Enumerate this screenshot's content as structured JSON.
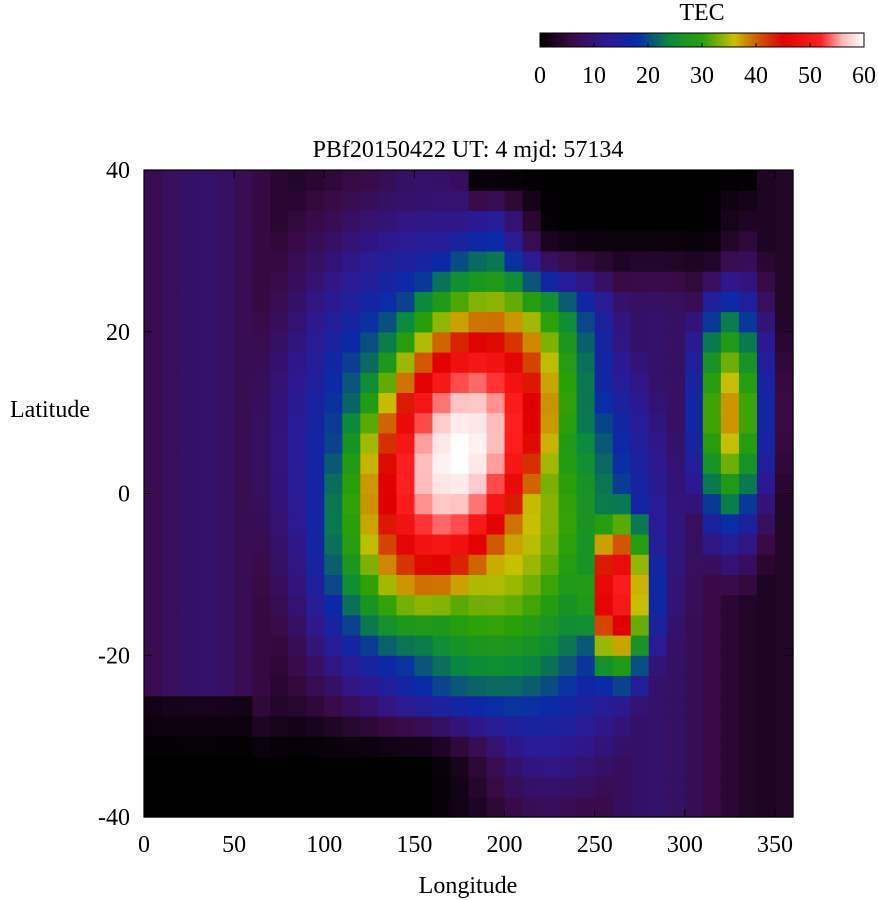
{
  "chart_data": {
    "type": "heatmap",
    "title": "PBf20150422  UT: 4  mjd: 57134",
    "xlabel": "Longitude",
    "ylabel": "Latitude",
    "xlim": [
      0,
      360
    ],
    "ylim": [
      -40,
      40
    ],
    "xticks": [
      "0",
      "50",
      "100",
      "150",
      "200",
      "250",
      "300",
      "350"
    ],
    "yticks": [
      "40",
      "20",
      "0",
      "-20",
      "-40"
    ],
    "colorbar": {
      "label": "TEC",
      "range": [
        0,
        60
      ],
      "ticks": [
        "0",
        "10",
        "20",
        "30",
        "40",
        "50",
        "60"
      ],
      "colormap": [
        [
          0,
          "#000000"
        ],
        [
          6,
          "#3a0a46"
        ],
        [
          12,
          "#2e1890"
        ],
        [
          18,
          "#0a2aa8"
        ],
        [
          24,
          "#0a8a3c"
        ],
        [
          30,
          "#2aa008"
        ],
        [
          36,
          "#c8c000"
        ],
        [
          40,
          "#d06000"
        ],
        [
          45,
          "#e00000"
        ],
        [
          52,
          "#ff2020"
        ],
        [
          56,
          "#ffb8b8"
        ],
        [
          60,
          "#ffffff"
        ]
      ]
    },
    "grid_resolution": {
      "lon_step": 10,
      "lat_step": 2.5
    },
    "tec_field": {
      "description_points": [
        {
          "lon": 170,
          "lat": 8,
          "tec": 60
        },
        {
          "lon": 260,
          "lat": -12,
          "tec": 45
        },
        {
          "lon": 0,
          "lat": -35,
          "tec": 0
        },
        {
          "lon": 320,
          "lat": 35,
          "tec": 0
        }
      ],
      "background_tec": 5,
      "peak_tec": 60
    }
  }
}
